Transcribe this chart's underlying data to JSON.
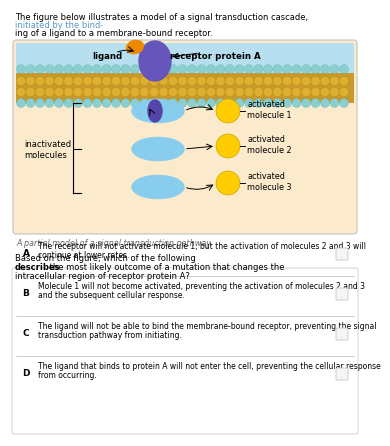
{
  "title_part1": "The figure below illustrates a model of a signal transduction cascade, ",
  "title_part2": "initiated by the bind-",
  "title_part3": "ing of a ligand to a membrane-bound receptor.",
  "figure_caption": "A partial model of a signal transduction pathway.",
  "question_pre": "Based on the figure, which of the following ",
  "question_bold": "describes",
  "question_post": " the most likely outcome of a mutation that changes the",
  "question_line2": "intracellular region of receptor protein A?",
  "options": [
    {
      "letter": "A",
      "line1": "The receptor will not activate molecule 1, but the activation of molecules 2 and 3 will",
      "line2": "continue at lower rates."
    },
    {
      "letter": "B",
      "line1": "Molecule 1 will not become activated, preventing the activation of molecules 2 and 3",
      "line2": "and the subsequent cellular response."
    },
    {
      "letter": "C",
      "line1": "The ligand will not be able to bind the membrane-bound receptor, preventing the signal",
      "line2": "transduction pathway from initiating."
    },
    {
      "letter": "D",
      "line1": "The ligand that binds to protein A will not enter the cell, preventing the cellular response",
      "line2": "from occurring."
    }
  ],
  "diagram_bg": "#fbeacc",
  "sky_blue": "#b8dff0",
  "membrane_gold": "#d4a520",
  "membrane_teal": "#7dbfbf",
  "receptor_color": "#6655bb",
  "ligand_color": "#ee8800",
  "inactive_color": "#88ccee",
  "active_color": "#ffcc00",
  "box_bg": "#ffffff",
  "box_border": "#cccccc",
  "title_blue": "#5599cc"
}
